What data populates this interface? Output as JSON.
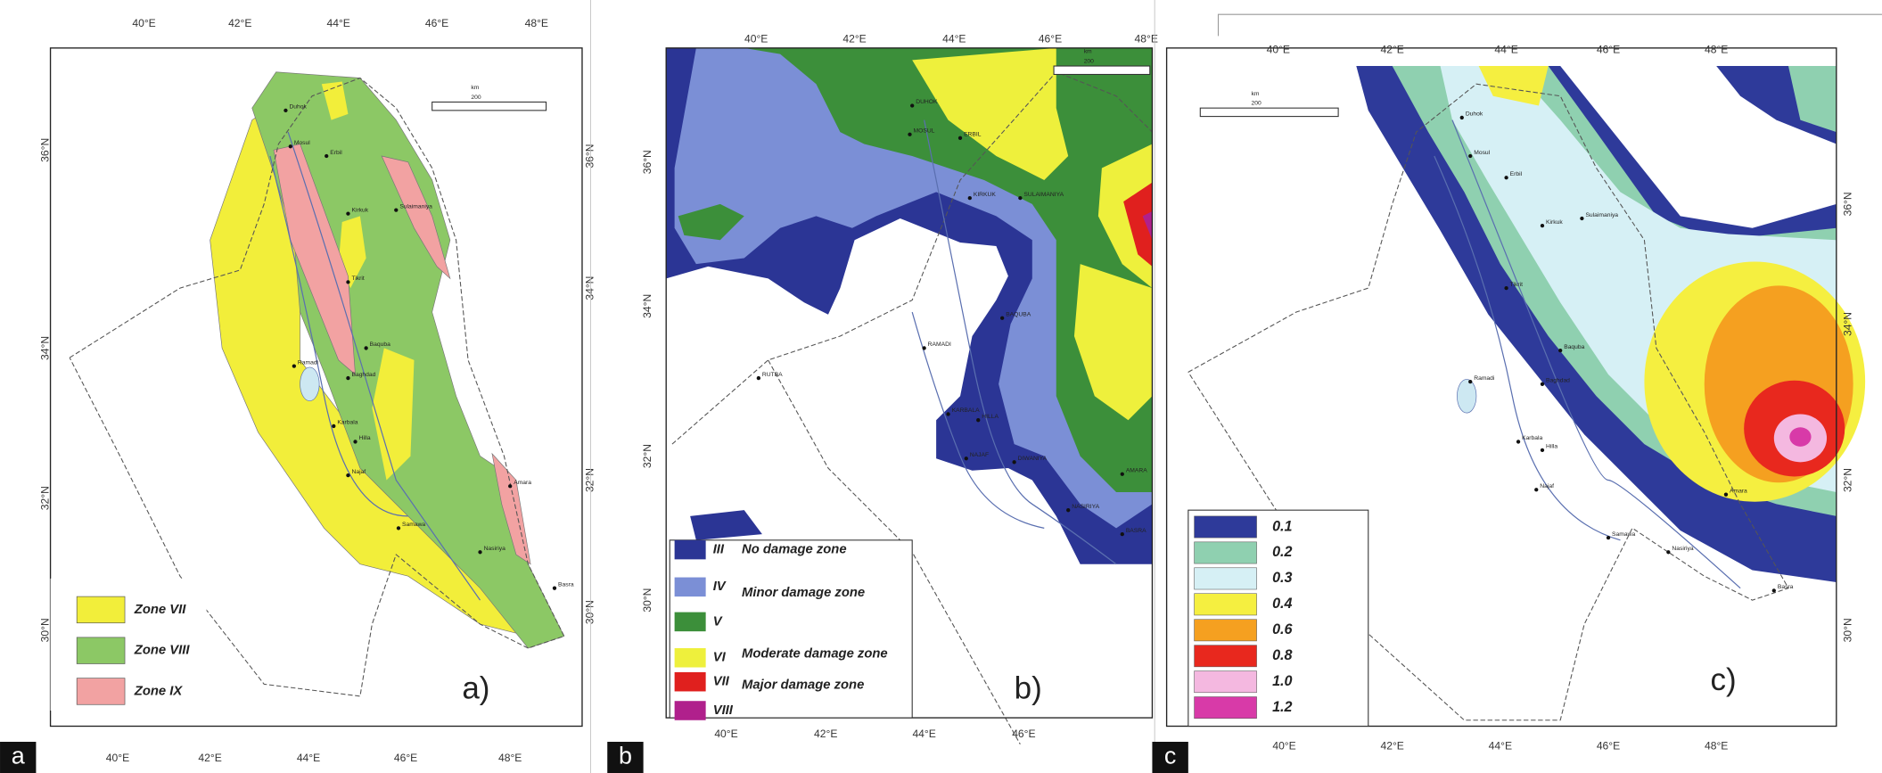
{
  "panels": [
    {
      "label": "a",
      "caption": "a)",
      "lon_ticks": [
        "40°E",
        "42°E",
        "44°E",
        "46°E",
        "48°E"
      ],
      "lat_ticks": [
        "36°N",
        "34°N",
        "32°N",
        "30°N"
      ],
      "scale_bar": {
        "unit": "km",
        "length": "200"
      },
      "legend": [
        {
          "label": "Zone VII",
          "color": "#f2ee3a"
        },
        {
          "label": "Zone VIII",
          "color": "#8cc865"
        },
        {
          "label": "Zone IX",
          "color": "#f2a2a2"
        }
      ],
      "cities": [
        "Duhok",
        "Mosul",
        "Erbil",
        "Kirkuk",
        "Sulaimaniya",
        "Tikrit",
        "Ramadi",
        "Baquba",
        "Baghdad",
        "Karbala",
        "Hilla",
        "Najaf",
        "Amara",
        "Samawa",
        "Nasiriya",
        "Basra"
      ]
    },
    {
      "label": "b",
      "caption": "b)",
      "lon_ticks": [
        "40°E",
        "42°E",
        "44°E",
        "46°E",
        "48°E"
      ],
      "lat_ticks": [
        "36°N",
        "34°N",
        "32°N",
        "30°N"
      ],
      "scale_bar": {
        "unit": "km",
        "length": "200"
      },
      "legend": [
        {
          "code": "III",
          "color": "#2b3595"
        },
        {
          "code": "IV",
          "color": "#7b8fd6"
        },
        {
          "code": "V",
          "color": "#3c8f3a"
        },
        {
          "code": "VI",
          "color": "#eef03c"
        },
        {
          "code": "VII",
          "color": "#e0201e"
        },
        {
          "code": "VIII",
          "color": "#b0208c"
        }
      ],
      "legend_descriptions": [
        "No damage zone",
        "Minor damage zone",
        "Moderate damage zone",
        "Major damage zone"
      ],
      "cities": [
        "DUHOK",
        "MOSUL",
        "ERBIL",
        "KIRKUK",
        "SULAIMANIYA",
        "RUTBA",
        "RAMADI",
        "BAQUBA",
        "KARBALA",
        "HILLA",
        "NAJAF",
        "DIWANIYA",
        "AMARA",
        "NASIRIYA",
        "BASRA"
      ]
    },
    {
      "label": "c",
      "caption": "c)",
      "lon_ticks": [
        "40°E",
        "42°E",
        "44°E",
        "46°E",
        "48°E"
      ],
      "lat_ticks": [
        "36°N",
        "34°N",
        "32°N",
        "30°N"
      ],
      "scale_bar": {
        "unit": "km",
        "length": "200"
      },
      "legend": [
        {
          "label": "0.1",
          "color": "#2e3a9a"
        },
        {
          "label": "0.2",
          "color": "#8fd0b0"
        },
        {
          "label": "0.3",
          "color": "#d6f0f5"
        },
        {
          "label": "0.4",
          "color": "#f5ef40"
        },
        {
          "label": "0.6",
          "color": "#f5a020"
        },
        {
          "label": "0.8",
          "color": "#e8281e"
        },
        {
          "label": "1.0",
          "color": "#f4b8e0"
        },
        {
          "label": "1.2",
          "color": "#d83aa8"
        }
      ],
      "cities": [
        "Duhok",
        "Mosul",
        "Erbil",
        "Kirkuk",
        "Sulaimaniya",
        "Tikrit",
        "Ramadi",
        "Baquba",
        "Baghdad",
        "Karbala",
        "Hilla",
        "Najaf",
        "Amara",
        "Samawa",
        "Nasiriya",
        "Basra"
      ]
    }
  ]
}
